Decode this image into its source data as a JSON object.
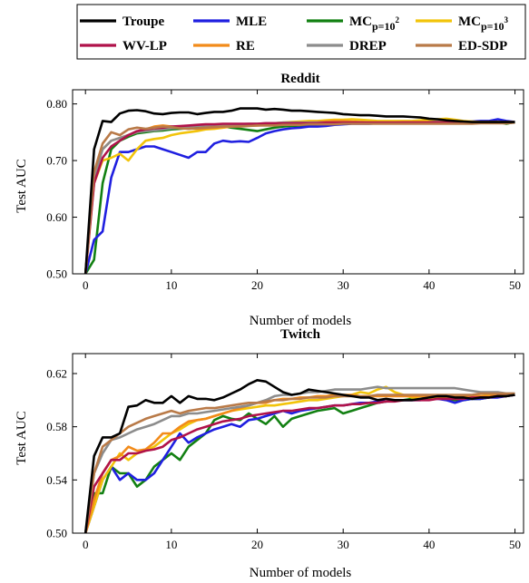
{
  "legend": {
    "entries": [
      {
        "key": "troupe",
        "label": "Troupe",
        "sub": "",
        "sup": ""
      },
      {
        "key": "mle",
        "label": "MLE",
        "sub": "",
        "sup": ""
      },
      {
        "key": "mc100",
        "label": "MC",
        "sub": "p=10",
        "sup": "2"
      },
      {
        "key": "mc1000",
        "label": "MC",
        "sub": "p=10",
        "sup": "3"
      },
      {
        "key": "wvlp",
        "label": "WV-LP",
        "sub": "",
        "sup": ""
      },
      {
        "key": "re",
        "label": "RE",
        "sub": "",
        "sup": ""
      },
      {
        "key": "drep",
        "label": "DREP",
        "sub": "",
        "sup": ""
      },
      {
        "key": "edsdp",
        "label": "ED-SDP",
        "sub": "",
        "sup": ""
      }
    ],
    "colors": {
      "troupe": "#000000",
      "mle": "#1f1fe0",
      "mc100": "#128012",
      "mc1000": "#f2c40a",
      "wvlp": "#b0124a",
      "re": "#f28b1a",
      "drep": "#8c8c8c",
      "edsdp": "#b97a48"
    }
  },
  "chart_data": [
    {
      "type": "line",
      "title": "Reddit",
      "xlabel": "Number of models",
      "ylabel": "Test AUC",
      "xlim": [
        -1.5,
        51
      ],
      "ylim": [
        0.5,
        0.825
      ],
      "xticks": [
        0,
        10,
        20,
        30,
        40,
        50
      ],
      "yticks": [
        0.5,
        0.6,
        0.7,
        0.8
      ],
      "ytick_labels": [
        "0.50",
        "0.60",
        "0.70",
        "0.80"
      ],
      "x": [
        0,
        1,
        2,
        3,
        4,
        5,
        6,
        7,
        8,
        9,
        10,
        11,
        12,
        13,
        14,
        15,
        16,
        17,
        18,
        19,
        20,
        21,
        22,
        23,
        24,
        25,
        26,
        27,
        28,
        29,
        30,
        31,
        32,
        33,
        34,
        35,
        36,
        37,
        38,
        39,
        40,
        41,
        42,
        43,
        44,
        45,
        46,
        47,
        48,
        49,
        50
      ],
      "series": [
        {
          "key": "mc100",
          "values": [
            0.5,
            0.525,
            0.66,
            0.72,
            0.735,
            0.742,
            0.748,
            0.75,
            0.752,
            0.753,
            0.755,
            0.756,
            0.757,
            0.758,
            0.758,
            0.759,
            0.76,
            0.758,
            0.756,
            0.754,
            0.752,
            0.755,
            0.758,
            0.76,
            0.761,
            0.762,
            0.763,
            0.764,
            0.764,
            0.765,
            0.765,
            0.766,
            0.766,
            0.766,
            0.767,
            0.767,
            0.767,
            0.767,
            0.768,
            0.768,
            0.768,
            0.768,
            0.768,
            0.768,
            0.768,
            0.768,
            0.768,
            0.768,
            0.768,
            0.765,
            0.768
          ]
        },
        {
          "key": "mle",
          "values": [
            0.5,
            0.56,
            0.575,
            0.67,
            0.715,
            0.715,
            0.72,
            0.725,
            0.725,
            0.72,
            0.715,
            0.71,
            0.705,
            0.715,
            0.715,
            0.73,
            0.735,
            0.733,
            0.734,
            0.733,
            0.74,
            0.748,
            0.752,
            0.755,
            0.757,
            0.758,
            0.76,
            0.76,
            0.761,
            0.763,
            0.764,
            0.765,
            0.765,
            0.765,
            0.766,
            0.767,
            0.767,
            0.768,
            0.768,
            0.768,
            0.769,
            0.769,
            0.768,
            0.768,
            0.768,
            0.769,
            0.77,
            0.77,
            0.773,
            0.77,
            0.768
          ]
        },
        {
          "key": "mc1000",
          "values": [
            0.5,
            0.66,
            0.7,
            0.705,
            0.712,
            0.7,
            0.72,
            0.735,
            0.738,
            0.74,
            0.745,
            0.748,
            0.75,
            0.752,
            0.755,
            0.756,
            0.758,
            0.76,
            0.762,
            0.763,
            0.764,
            0.765,
            0.766,
            0.767,
            0.768,
            0.769,
            0.77,
            0.77,
            0.771,
            0.772,
            0.772,
            0.773,
            0.772,
            0.771,
            0.77,
            0.77,
            0.77,
            0.77,
            0.77,
            0.771,
            0.772,
            0.773,
            0.774,
            0.772,
            0.77,
            0.769,
            0.768,
            0.768,
            0.768,
            0.767,
            0.767
          ]
        },
        {
          "key": "re",
          "values": [
            0.5,
            0.68,
            0.72,
            0.735,
            0.74,
            0.745,
            0.75,
            0.755,
            0.76,
            0.762,
            0.76,
            0.758,
            0.757,
            0.756,
            0.757,
            0.758,
            0.759,
            0.76,
            0.761,
            0.762,
            0.762,
            0.763,
            0.764,
            0.765,
            0.765,
            0.766,
            0.767,
            0.768,
            0.769,
            0.77,
            0.77,
            0.769,
            0.768,
            0.767,
            0.767,
            0.767,
            0.767,
            0.768,
            0.768,
            0.768,
            0.768,
            0.768,
            0.768,
            0.768,
            0.768,
            0.768,
            0.768,
            0.768,
            0.768,
            0.768,
            0.768
          ]
        },
        {
          "key": "drep",
          "values": [
            0.5,
            0.67,
            0.72,
            0.735,
            0.74,
            0.745,
            0.75,
            0.752,
            0.753,
            0.755,
            0.757,
            0.758,
            0.76,
            0.761,
            0.762,
            0.763,
            0.763,
            0.764,
            0.764,
            0.765,
            0.765,
            0.766,
            0.766,
            0.767,
            0.767,
            0.767,
            0.767,
            0.767,
            0.767,
            0.767,
            0.767,
            0.767,
            0.767,
            0.767,
            0.767,
            0.767,
            0.767,
            0.767,
            0.767,
            0.767,
            0.767,
            0.767,
            0.767,
            0.767,
            0.767,
            0.767,
            0.767,
            0.767,
            0.767,
            0.767,
            0.768
          ]
        },
        {
          "key": "wvlp",
          "values": [
            0.5,
            0.66,
            0.705,
            0.725,
            0.735,
            0.745,
            0.752,
            0.755,
            0.757,
            0.758,
            0.76,
            0.761,
            0.762,
            0.763,
            0.764,
            0.764,
            0.765,
            0.765,
            0.765,
            0.765,
            0.765,
            0.766,
            0.766,
            0.766,
            0.766,
            0.766,
            0.766,
            0.766,
            0.767,
            0.767,
            0.767,
            0.767,
            0.767,
            0.767,
            0.767,
            0.767,
            0.767,
            0.767,
            0.767,
            0.767,
            0.767,
            0.767,
            0.767,
            0.767,
            0.767,
            0.767,
            0.767,
            0.767,
            0.767,
            0.767,
            0.767
          ]
        },
        {
          "key": "edsdp",
          "values": [
            0.5,
            0.68,
            0.73,
            0.75,
            0.745,
            0.755,
            0.758,
            0.756,
            0.758,
            0.76,
            0.759,
            0.757,
            0.756,
            0.757,
            0.758,
            0.759,
            0.76,
            0.76,
            0.76,
            0.761,
            0.762,
            0.762,
            0.762,
            0.763,
            0.763,
            0.763,
            0.764,
            0.764,
            0.764,
            0.764,
            0.765,
            0.765,
            0.765,
            0.765,
            0.765,
            0.765,
            0.765,
            0.765,
            0.765,
            0.765,
            0.765,
            0.765,
            0.765,
            0.765,
            0.765,
            0.765,
            0.766,
            0.766,
            0.766,
            0.766,
            0.767
          ]
        },
        {
          "key": "troupe",
          "values": [
            0.5,
            0.72,
            0.77,
            0.768,
            0.783,
            0.788,
            0.789,
            0.787,
            0.783,
            0.782,
            0.784,
            0.785,
            0.785,
            0.782,
            0.784,
            0.786,
            0.786,
            0.788,
            0.792,
            0.792,
            0.792,
            0.79,
            0.791,
            0.79,
            0.788,
            0.788,
            0.787,
            0.786,
            0.785,
            0.784,
            0.782,
            0.781,
            0.78,
            0.78,
            0.779,
            0.778,
            0.778,
            0.778,
            0.777,
            0.776,
            0.774,
            0.773,
            0.771,
            0.77,
            0.769,
            0.768,
            0.768,
            0.768,
            0.768,
            0.768,
            0.768
          ]
        }
      ]
    },
    {
      "type": "line",
      "title": "Twitch",
      "xlabel": "Number of models",
      "ylabel": "Test AUC",
      "xlim": [
        -1.5,
        51
      ],
      "ylim": [
        0.5,
        0.635
      ],
      "xticks": [
        0,
        10,
        20,
        30,
        40,
        50
      ],
      "yticks": [
        0.5,
        0.54,
        0.58,
        0.62
      ],
      "ytick_labels": [
        "0.50",
        "0.54",
        "0.58",
        "0.62"
      ],
      "x": [
        0,
        1,
        2,
        3,
        4,
        5,
        6,
        7,
        8,
        9,
        10,
        11,
        12,
        13,
        14,
        15,
        16,
        17,
        18,
        19,
        20,
        21,
        22,
        23,
        24,
        25,
        26,
        27,
        28,
        29,
        30,
        31,
        32,
        33,
        34,
        35,
        36,
        37,
        38,
        39,
        40,
        41,
        42,
        43,
        44,
        45,
        46,
        47,
        48,
        49,
        50
      ],
      "series": [
        {
          "key": "mc100",
          "values": [
            0.5,
            0.53,
            0.53,
            0.55,
            0.545,
            0.545,
            0.535,
            0.54,
            0.55,
            0.555,
            0.56,
            0.555,
            0.565,
            0.57,
            0.575,
            0.585,
            0.588,
            0.586,
            0.585,
            0.59,
            0.586,
            0.582,
            0.588,
            0.58,
            0.586,
            0.588,
            0.59,
            0.592,
            0.593,
            0.594,
            0.59,
            0.592,
            0.594,
            0.596,
            0.598,
            0.599,
            0.6,
            0.6,
            0.601,
            0.601,
            0.602,
            0.602,
            0.601,
            0.6,
            0.6,
            0.601,
            0.601,
            0.602,
            0.603,
            0.603,
            0.604
          ]
        },
        {
          "key": "mle",
          "values": [
            0.5,
            0.52,
            0.54,
            0.55,
            0.54,
            0.545,
            0.54,
            0.54,
            0.545,
            0.555,
            0.565,
            0.575,
            0.568,
            0.572,
            0.575,
            0.578,
            0.58,
            0.582,
            0.58,
            0.585,
            0.586,
            0.588,
            0.59,
            0.592,
            0.59,
            0.592,
            0.593,
            0.594,
            0.595,
            0.596,
            0.596,
            0.597,
            0.598,
            0.598,
            0.599,
            0.599,
            0.6,
            0.6,
            0.6,
            0.6,
            0.601,
            0.601,
            0.6,
            0.598,
            0.6,
            0.601,
            0.601,
            0.602,
            0.602,
            0.603,
            0.604
          ]
        },
        {
          "key": "mc1000",
          "values": [
            0.5,
            0.52,
            0.54,
            0.55,
            0.56,
            0.555,
            0.56,
            0.562,
            0.565,
            0.57,
            0.575,
            0.578,
            0.582,
            0.585,
            0.586,
            0.588,
            0.59,
            0.592,
            0.593,
            0.594,
            0.595,
            0.596,
            0.596,
            0.597,
            0.598,
            0.599,
            0.6,
            0.6,
            0.601,
            0.602,
            0.603,
            0.604,
            0.606,
            0.605,
            0.608,
            0.61,
            0.606,
            0.604,
            0.602,
            0.601,
            0.601,
            0.602,
            0.602,
            0.603,
            0.603,
            0.603,
            0.603,
            0.604,
            0.604,
            0.604,
            0.604
          ]
        },
        {
          "key": "re",
          "values": [
            0.5,
            0.525,
            0.545,
            0.555,
            0.558,
            0.565,
            0.562,
            0.563,
            0.568,
            0.575,
            0.575,
            0.58,
            0.584,
            0.585,
            0.586,
            0.588,
            0.59,
            0.592,
            0.594,
            0.596,
            0.598,
            0.598,
            0.6,
            0.601,
            0.601,
            0.602,
            0.602,
            0.603,
            0.603,
            0.604,
            0.604,
            0.604,
            0.603,
            0.603,
            0.603,
            0.603,
            0.603,
            0.603,
            0.603,
            0.603,
            0.603,
            0.603,
            0.603,
            0.603,
            0.603,
            0.603,
            0.603,
            0.603,
            0.604,
            0.604,
            0.604
          ]
        },
        {
          "key": "drep",
          "values": [
            0.5,
            0.545,
            0.56,
            0.57,
            0.572,
            0.575,
            0.578,
            0.58,
            0.582,
            0.585,
            0.588,
            0.588,
            0.59,
            0.59,
            0.591,
            0.592,
            0.593,
            0.594,
            0.595,
            0.596,
            0.598,
            0.6,
            0.603,
            0.604,
            0.604,
            0.605,
            0.606,
            0.606,
            0.607,
            0.608,
            0.608,
            0.608,
            0.608,
            0.609,
            0.61,
            0.609,
            0.609,
            0.609,
            0.609,
            0.609,
            0.609,
            0.609,
            0.609,
            0.609,
            0.608,
            0.607,
            0.606,
            0.606,
            0.606,
            0.605,
            0.605
          ]
        },
        {
          "key": "wvlp",
          "values": [
            0.5,
            0.535,
            0.545,
            0.555,
            0.555,
            0.56,
            0.56,
            0.562,
            0.563,
            0.565,
            0.57,
            0.572,
            0.575,
            0.578,
            0.58,
            0.582,
            0.584,
            0.585,
            0.586,
            0.588,
            0.589,
            0.59,
            0.591,
            0.592,
            0.592,
            0.593,
            0.594,
            0.594,
            0.595,
            0.596,
            0.596,
            0.597,
            0.597,
            0.598,
            0.598,
            0.599,
            0.599,
            0.6,
            0.6,
            0.6,
            0.6,
            0.601,
            0.601,
            0.601,
            0.601,
            0.602,
            0.602,
            0.602,
            0.603,
            0.603,
            0.604
          ]
        },
        {
          "key": "edsdp",
          "values": [
            0.5,
            0.545,
            0.565,
            0.57,
            0.575,
            0.58,
            0.583,
            0.586,
            0.588,
            0.59,
            0.592,
            0.59,
            0.592,
            0.593,
            0.594,
            0.594,
            0.595,
            0.596,
            0.597,
            0.598,
            0.598,
            0.599,
            0.6,
            0.6,
            0.601,
            0.601,
            0.602,
            0.602,
            0.602,
            0.603,
            0.603,
            0.603,
            0.603,
            0.603,
            0.604,
            0.604,
            0.604,
            0.604,
            0.604,
            0.604,
            0.604,
            0.604,
            0.604,
            0.604,
            0.604,
            0.604,
            0.605,
            0.605,
            0.605,
            0.605,
            0.605
          ]
        },
        {
          "key": "troupe",
          "values": [
            0.5,
            0.558,
            0.572,
            0.572,
            0.575,
            0.595,
            0.596,
            0.6,
            0.598,
            0.598,
            0.603,
            0.598,
            0.603,
            0.601,
            0.601,
            0.6,
            0.602,
            0.605,
            0.608,
            0.612,
            0.615,
            0.614,
            0.61,
            0.606,
            0.604,
            0.605,
            0.608,
            0.607,
            0.606,
            0.605,
            0.604,
            0.603,
            0.602,
            0.602,
            0.6,
            0.601,
            0.6,
            0.6,
            0.6,
            0.601,
            0.602,
            0.603,
            0.603,
            0.602,
            0.602,
            0.601,
            0.602,
            0.602,
            0.603,
            0.603,
            0.604
          ]
        }
      ]
    }
  ]
}
